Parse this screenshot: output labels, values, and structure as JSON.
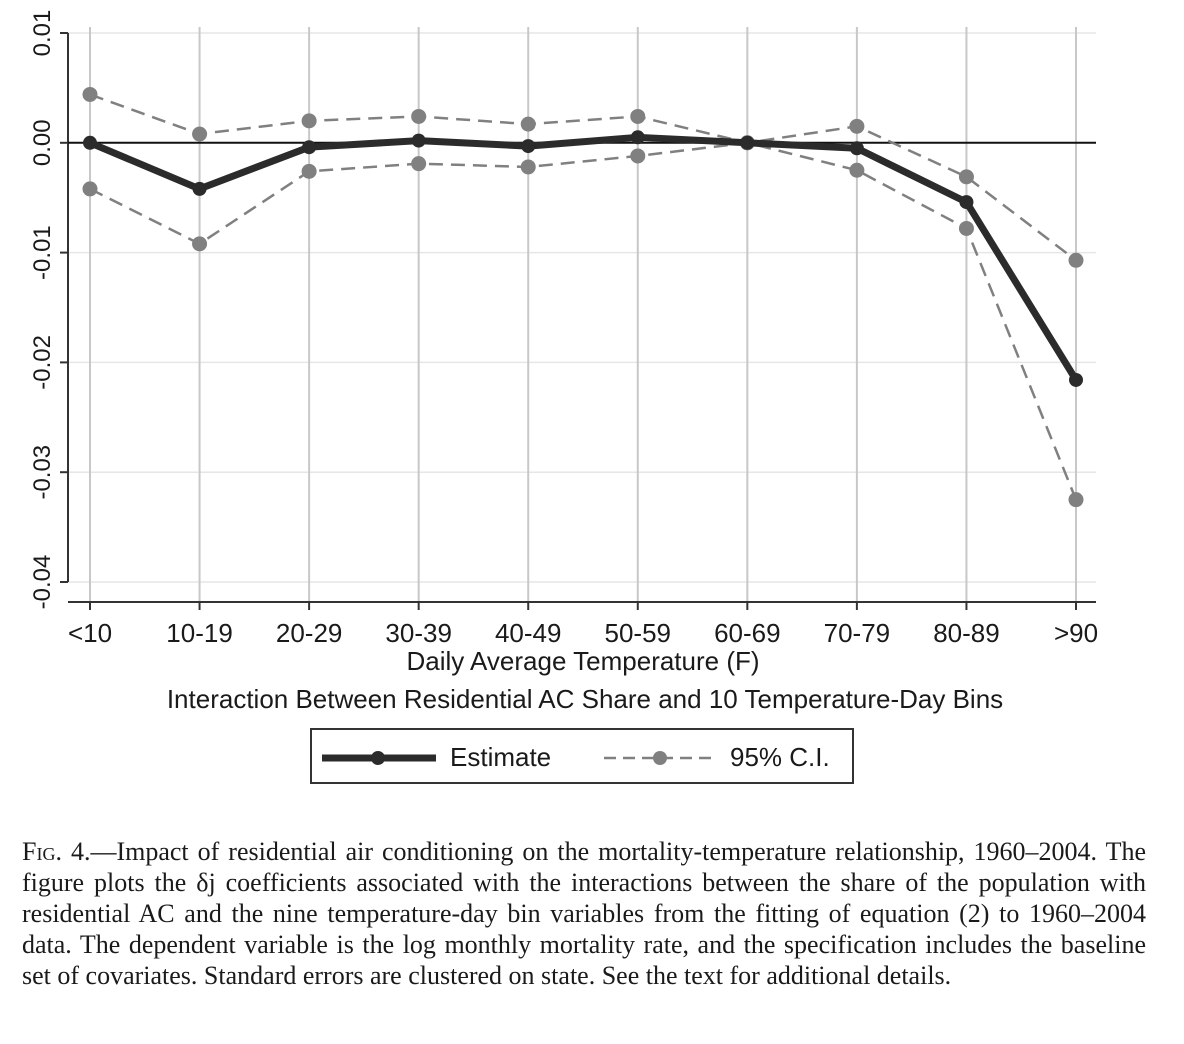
{
  "chart_data": {
    "type": "line",
    "categories": [
      "<10",
      "10-19",
      "20-29",
      "30-39",
      "40-49",
      "50-59",
      "60-69",
      "70-79",
      "80-89",
      ">90"
    ],
    "series": [
      {
        "name": "Estimate",
        "style": "solid-thick",
        "color": "#2b2b2b",
        "values": [
          0.0,
          -0.0042,
          -0.0004,
          0.0002,
          -0.0003,
          0.0005,
          0.0,
          -0.0005,
          -0.0054,
          -0.0216
        ]
      },
      {
        "name": "95% C.I.",
        "style": "dashed",
        "color": "#808080",
        "values": [
          0.0044,
          0.0008,
          0.002,
          0.0024,
          0.0017,
          0.0024,
          0.0,
          0.0015,
          -0.0031,
          -0.0107
        ]
      },
      {
        "name": "95% C.I.",
        "style": "dashed",
        "color": "#808080",
        "values": [
          -0.0042,
          -0.0092,
          -0.0026,
          -0.0019,
          -0.0022,
          -0.0012,
          0.0,
          -0.0025,
          -0.0078,
          -0.0325
        ]
      }
    ],
    "ylim": [
      -0.04,
      0.01
    ],
    "yticks": [
      0.01,
      0.0,
      -0.01,
      -0.02,
      -0.03,
      -0.04
    ],
    "ytick_labels": [
      "0.01",
      "0.00",
      "-0.01",
      "-0.02",
      "-0.03",
      "-0.04"
    ],
    "xlabel": "Daily Average Temperature (F)",
    "subtitle": "Interaction Between Residential AC Share and 10 Temperature-Day Bins",
    "reference_line_y": 0.0,
    "grid": true,
    "legend_position": "bottom-center"
  },
  "legend": {
    "estimate_label": "Estimate",
    "ci_label": "95% C.I."
  },
  "caption": {
    "fig_label": "Fig. 4.",
    "text": "—Impact of residential air conditioning on the mortality-temperature relationship, 1960–2004. The figure plots the δj coefficients associated with the interactions between the share of the population with residential AC and the nine temperature-day bin variables from the fitting of equation (2) to 1960–2004 data. The dependent variable is the log monthly mortality rate, and the specification includes the baseline set of covariates. Standard errors are clustered on state. See the text for additional details."
  }
}
